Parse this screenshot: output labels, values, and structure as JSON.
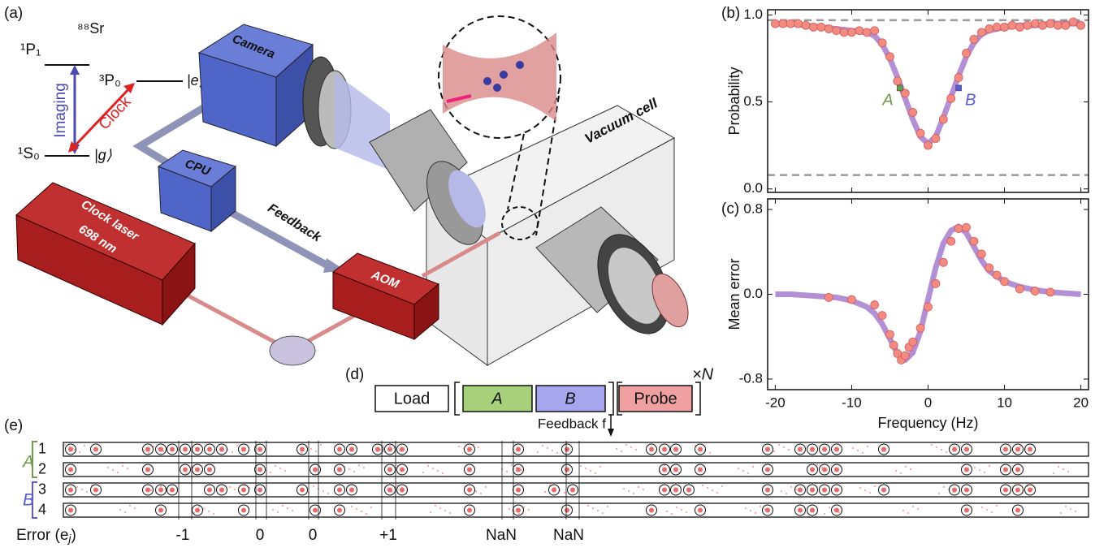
{
  "panel_labels": [
    "(a)",
    "(b)",
    "(c)",
    "(d)",
    "(e)"
  ],
  "levels": {
    "isotope": "⁸⁸Sr",
    "p1": "¹P₁",
    "p0": "³P₀",
    "e": "|e⟩",
    "s0": "¹S₀",
    "g": "|g⟩",
    "imaging": "Imaging",
    "clock": "Clock"
  },
  "apparatus": {
    "camera": "Camera",
    "cpu": "CPU",
    "feedback": "Feedback",
    "laser": "Clock laser",
    "wavelength": "698 nm",
    "aom": "AOM",
    "cell": "Vacuum cell"
  },
  "sequence": {
    "blocks": [
      "Load",
      "A",
      "B",
      "Probe"
    ],
    "repeat": "×N",
    "feedback": "Feedback f"
  },
  "chart_data": [
    {
      "type": "scatter",
      "ylabel": "Probability",
      "xlim": [
        -21,
        21
      ],
      "xticks": [
        -20,
        -10,
        0,
        10,
        20
      ],
      "show_xtick_labels": false,
      "ylim": [
        -0.02,
        1.03
      ],
      "yticks": [
        {
          "value": 0,
          "label": "0.0"
        },
        {
          "value": 0.5,
          "label": "0.5"
        },
        {
          "value": 1,
          "label": "1.0"
        }
      ],
      "reference_lines": [
        0.97,
        0.08
      ],
      "series": [
        {
          "kind": "fit",
          "color": "#9a6ac8",
          "x": [
            -20,
            -18,
            -16,
            -14,
            -12,
            -10,
            -8,
            -7,
            -6,
            -5,
            -4,
            -3,
            -2,
            -1,
            0,
            1,
            2,
            3,
            4,
            5,
            6,
            7,
            8,
            10,
            12,
            14,
            16,
            18,
            20
          ],
          "values": [
            0.95,
            0.95,
            0.94,
            0.93,
            0.92,
            0.91,
            0.9,
            0.88,
            0.83,
            0.75,
            0.64,
            0.52,
            0.4,
            0.3,
            0.26,
            0.3,
            0.41,
            0.53,
            0.65,
            0.76,
            0.84,
            0.89,
            0.91,
            0.93,
            0.94,
            0.94,
            0.95,
            0.95,
            0.95
          ]
        },
        {
          "kind": "points",
          "color": "#f28b82",
          "x": [
            -20,
            -19,
            -18,
            -17,
            -16,
            -15,
            -14,
            -13,
            -12,
            -11,
            -10,
            -9,
            -8,
            -7,
            -6,
            -5,
            -4,
            -3,
            -2,
            -1,
            0,
            1,
            2,
            3,
            4,
            5,
            6,
            7,
            8,
            9,
            10,
            11,
            12,
            13,
            14,
            15,
            16,
            17,
            18,
            19,
            20
          ],
          "values": [
            0.95,
            0.95,
            0.95,
            0.95,
            0.94,
            0.93,
            0.93,
            0.92,
            0.91,
            0.9,
            0.9,
            0.91,
            0.9,
            0.91,
            0.84,
            0.76,
            0.62,
            0.55,
            0.44,
            0.32,
            0.25,
            0.29,
            0.4,
            0.52,
            0.64,
            0.78,
            0.86,
            0.9,
            0.92,
            0.93,
            0.93,
            0.94,
            0.93,
            0.94,
            0.95,
            0.94,
            0.95,
            0.94,
            0.94,
            0.96,
            0.94
          ]
        }
      ],
      "annotations": [
        {
          "text": "A",
          "x": -3.7,
          "y": 0.58,
          "color": "#6f9a4c"
        },
        {
          "text": "B",
          "x": 4,
          "y": 0.58,
          "color": "#5a5ad8"
        }
      ]
    },
    {
      "type": "scatter",
      "ylabel": "Mean error",
      "xlabel": "Frequency (Hz)",
      "xlim": [
        -21,
        21
      ],
      "xticks": [
        -20,
        -10,
        0,
        10,
        20
      ],
      "show_xtick_labels": true,
      "ylim": [
        -0.9,
        0.9
      ],
      "yticks": [
        -0.8,
        {
          "value": 0,
          "label": "0.0"
        },
        0.8
      ],
      "series": [
        {
          "kind": "fit",
          "color": "#9a6ac8",
          "x": [
            -20,
            -18,
            -16,
            -14,
            -12,
            -10,
            -8,
            -7,
            -6,
            -5,
            -4,
            -3,
            -2,
            -1,
            0,
            1,
            2,
            3,
            4,
            5,
            6,
            7,
            8,
            10,
            12,
            14,
            16,
            18,
            20
          ],
          "values": [
            0,
            0,
            -0.01,
            -0.02,
            -0.03,
            -0.06,
            -0.12,
            -0.18,
            -0.28,
            -0.42,
            -0.56,
            -0.62,
            -0.55,
            -0.35,
            -0.05,
            0.25,
            0.48,
            0.6,
            0.64,
            0.58,
            0.45,
            0.32,
            0.22,
            0.12,
            0.07,
            0.04,
            0.02,
            0.01,
            0
          ]
        },
        {
          "kind": "points",
          "color": "#f28b82",
          "x": [
            -13,
            -10,
            -7,
            -6,
            -5,
            -4.5,
            -4,
            -3.5,
            -3,
            -2.5,
            -2,
            -1,
            0,
            1,
            2,
            3,
            4,
            5,
            6,
            7,
            8,
            9,
            10,
            12,
            14,
            16
          ],
          "values": [
            -0.03,
            -0.05,
            -0.1,
            -0.2,
            -0.38,
            -0.48,
            -0.56,
            -0.62,
            -0.58,
            -0.5,
            -0.45,
            -0.32,
            -0.12,
            0.1,
            0.3,
            0.5,
            0.62,
            0.63,
            0.5,
            0.38,
            0.25,
            0.18,
            0.12,
            0.05,
            0.03,
            0.02
          ]
        }
      ]
    }
  ],
  "readout": {
    "groups": [
      "A",
      "B"
    ],
    "rows": [
      "1",
      "2",
      "3",
      "4"
    ],
    "axis_label": "Error (e",
    "axis_sub": "j",
    "axis_close": ")",
    "errors": [
      "-1",
      "0",
      "0",
      "+1",
      "NaN",
      "NaN"
    ]
  }
}
